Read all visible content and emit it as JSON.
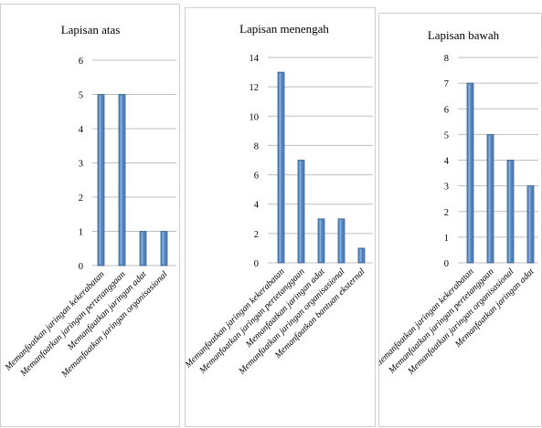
{
  "chart_data": [
    {
      "type": "bar",
      "title": "Lapisan atas",
      "categories": [
        "Memanfaatkan jaringan kekerabatan",
        "Memanfaatkan jaringan pertetanggaan",
        "Memanfaatkan jaringan adat",
        "Memanfaatkan jaringan organisasional"
      ],
      "values": [
        5,
        5,
        1,
        1
      ],
      "ylim": [
        0,
        6
      ],
      "yticks": [
        "0",
        "1",
        "2",
        "3",
        "4",
        "5",
        "6"
      ],
      "grid": true
    },
    {
      "type": "bar",
      "title": "Lapisan menengah",
      "categories": [
        "Memanfaatkan jaringan kekerabatan",
        "Memanfaatkan jaringan pertetanggaan",
        "Memanfaatkan jaringan adat",
        "Memanfaatkan jaringan organisasional",
        "Memanfaatkan bantuan eksternal"
      ],
      "values": [
        13,
        7,
        3,
        3,
        1
      ],
      "ylim": [
        0,
        14
      ],
      "yticks": [
        "0",
        "2",
        "4",
        "6",
        "8",
        "10",
        "12",
        "14"
      ],
      "grid": true
    },
    {
      "type": "bar",
      "title": "Lapisan bawah",
      "categories": [
        "Memanfaatkan jaringan kekerabatan",
        "Memanfaatkan jaringan pertetanggaan",
        "Memanfaatkan jaringan organisasional",
        "Memanfaatkan jaringan adat"
      ],
      "values": [
        7,
        5,
        4,
        3
      ],
      "ylim": [
        0,
        8
      ],
      "yticks": [
        "0",
        "1",
        "2",
        "3",
        "4",
        "5",
        "6",
        "7",
        "8"
      ],
      "grid": true
    }
  ],
  "colors": {
    "bar_fill": "#4f81bd",
    "bar_highlight": "#9dc3e6",
    "bar_stroke": "#3a6595",
    "grid": "#bfbfbf",
    "text": "#000000"
  }
}
